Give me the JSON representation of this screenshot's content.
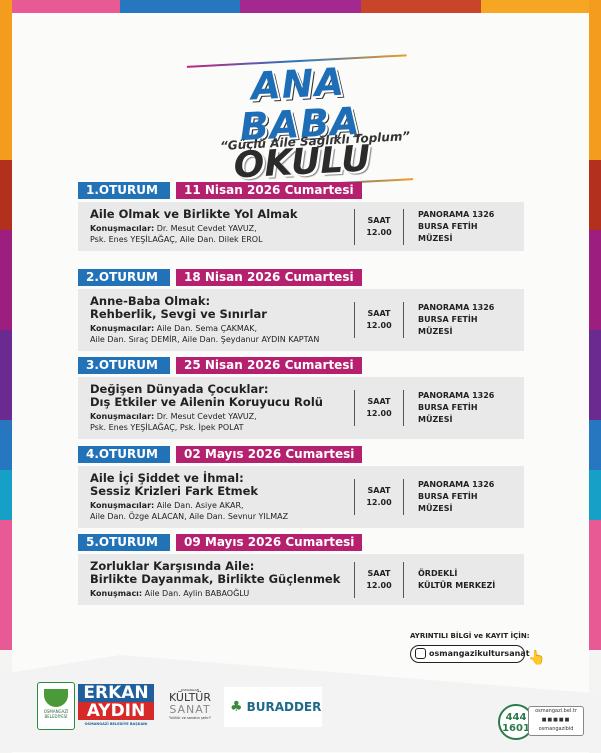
{
  "colors": {
    "blue": "#2272b8",
    "magenta": "#b5206f",
    "top_strip": [
      "#e85a94",
      "#2776c0",
      "#a3288f",
      "#c8452a",
      "#f6a623"
    ]
  },
  "title": {
    "line1": "ANA BABA",
    "line2": "OKULU",
    "slogan": "“Güçlü Aile Sağlıklı Toplum”"
  },
  "sessions": [
    {
      "number": "1.OTURUM",
      "date": "11 Nisan 2026 Cumartesi",
      "title_lines": [
        "Aile Olmak ve Birlikte Yol Almak"
      ],
      "speakers_label": "Konuşmacılar:",
      "speakers": [
        " Dr. Mesut Cevdet YAVUZ,",
        "Psk. Enes YEŞİLAĞAÇ, Aile Dan. Dilek EROL"
      ],
      "time_label": "SAAT",
      "time": "12.00",
      "place": [
        "PANORAMA 1326",
        "BURSA FETİH MÜZESİ"
      ]
    },
    {
      "number": "2.OTURUM",
      "date": "18 Nisan 2026 Cumartesi",
      "title_lines": [
        "Anne-Baba Olmak:",
        "Rehberlik, Sevgi ve Sınırlar"
      ],
      "speakers_label": "Konuşmacılar:",
      "speakers": [
        " Aile Dan. Sema ÇAKMAK,",
        "Aile Dan. Sıraç DEMİR, Aile Dan. Şeydanur AYDIN KAPTAN"
      ],
      "time_label": "SAAT",
      "time": "12.00",
      "place": [
        "PANORAMA 1326",
        "BURSA FETİH MÜZESİ"
      ]
    },
    {
      "number": "3.OTURUM",
      "date": "25 Nisan 2026 Cumartesi",
      "title_lines": [
        "Değişen Dünyada Çocuklar:",
        "Dış Etkiler ve Ailenin Koruyucu Rolü"
      ],
      "speakers_label": "Konuşmacılar:",
      "speakers": [
        " Dr. Mesut Cevdet YAVUZ,",
        "Psk. Enes YEŞİLAĞAÇ, Psk. İpek POLAT"
      ],
      "time_label": "SAAT",
      "time": "12.00",
      "place": [
        "PANORAMA 1326",
        "BURSA FETİH MÜZESİ"
      ]
    },
    {
      "number": "4.OTURUM",
      "date": "02 Mayıs 2026 Cumartesi",
      "title_lines": [
        "Aile İçi Şiddet ve İhmal:",
        "Sessiz Krizleri Fark Etmek"
      ],
      "speakers_label": "Konuşmacılar:",
      "speakers": [
        " Aile Dan. Asiye AKAR,",
        "Aile Dan. Özge ALACAN, Aile Dan. Sevnur YILMAZ"
      ],
      "time_label": "SAAT",
      "time": "12.00",
      "place": [
        "PANORAMA 1326",
        "BURSA FETİH MÜZESİ"
      ]
    },
    {
      "number": "5.OTURUM",
      "date": "09 Mayıs 2026 Cumartesi",
      "title_lines": [
        "Zorluklar Karşısında Aile:",
        "Birlikte Dayanmak, Birlikte Güçlenmek"
      ],
      "speakers_label": "Konuşmacı:",
      "speakers": [
        " Aile Dan. Aylin BABAOĞLU",
        ""
      ],
      "time_label": "SAAT",
      "time": "12.00",
      "place": [
        "ÖRDEKLİ",
        "KÜLTÜR MERKEZİ"
      ]
    }
  ],
  "contact": {
    "label": "AYRINTILI BİLGİ ve KAYIT İÇİN:",
    "instagram": "osmangazikultursanat"
  },
  "footer": {
    "municipality": "OSMANGAZİ BELEDİYESİ",
    "mayor_first": "ERKAN",
    "mayor_last": "AYDIN",
    "mayor_title": "OSMANGAZİ BELEDİYE BAŞKANI",
    "kultur_top": "OSMANGAZİ",
    "kultur": "KÜLTÜR",
    "sanat": "SANAT",
    "kultur_slogan": "\"kültür ve sanatın şehri\"",
    "buradder": "BURADDER",
    "phone_top": "444",
    "phone_bottom": "1601",
    "website": "osmangazi.bel.tr",
    "social": "osmangazibld"
  }
}
